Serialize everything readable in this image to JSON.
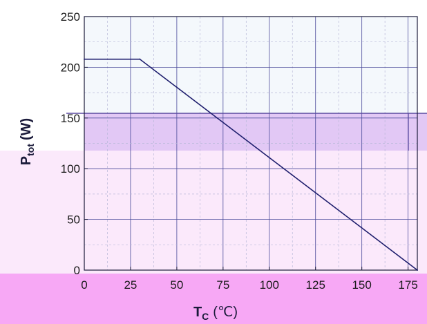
{
  "chart_data": {
    "type": "line",
    "title": "",
    "xlabel": {
      "main": "T",
      "sub": "C",
      "unit": "(℃)"
    },
    "ylabel": {
      "main": "P",
      "sub": "tot",
      "unit": "(W)"
    },
    "xlim": [
      0,
      180
    ],
    "ylim": [
      0,
      250
    ],
    "xticks": [
      0,
      25,
      50,
      75,
      100,
      125,
      150,
      175
    ],
    "yticks": [
      0,
      50,
      100,
      150,
      200,
      250
    ],
    "grid": true,
    "legend": "none",
    "colors": {
      "line": "#1f1f6e",
      "grid_major": "#4a4a9a",
      "grid_minor": "#b8b8d8",
      "band_bottom": "#f7a8f5",
      "band_middle": "#e2c8f5",
      "plot_fill": "#fbe9fb"
    },
    "series": [
      {
        "x": [
          0,
          30,
          180
        ],
        "y": [
          208,
          208,
          0
        ]
      }
    ]
  }
}
